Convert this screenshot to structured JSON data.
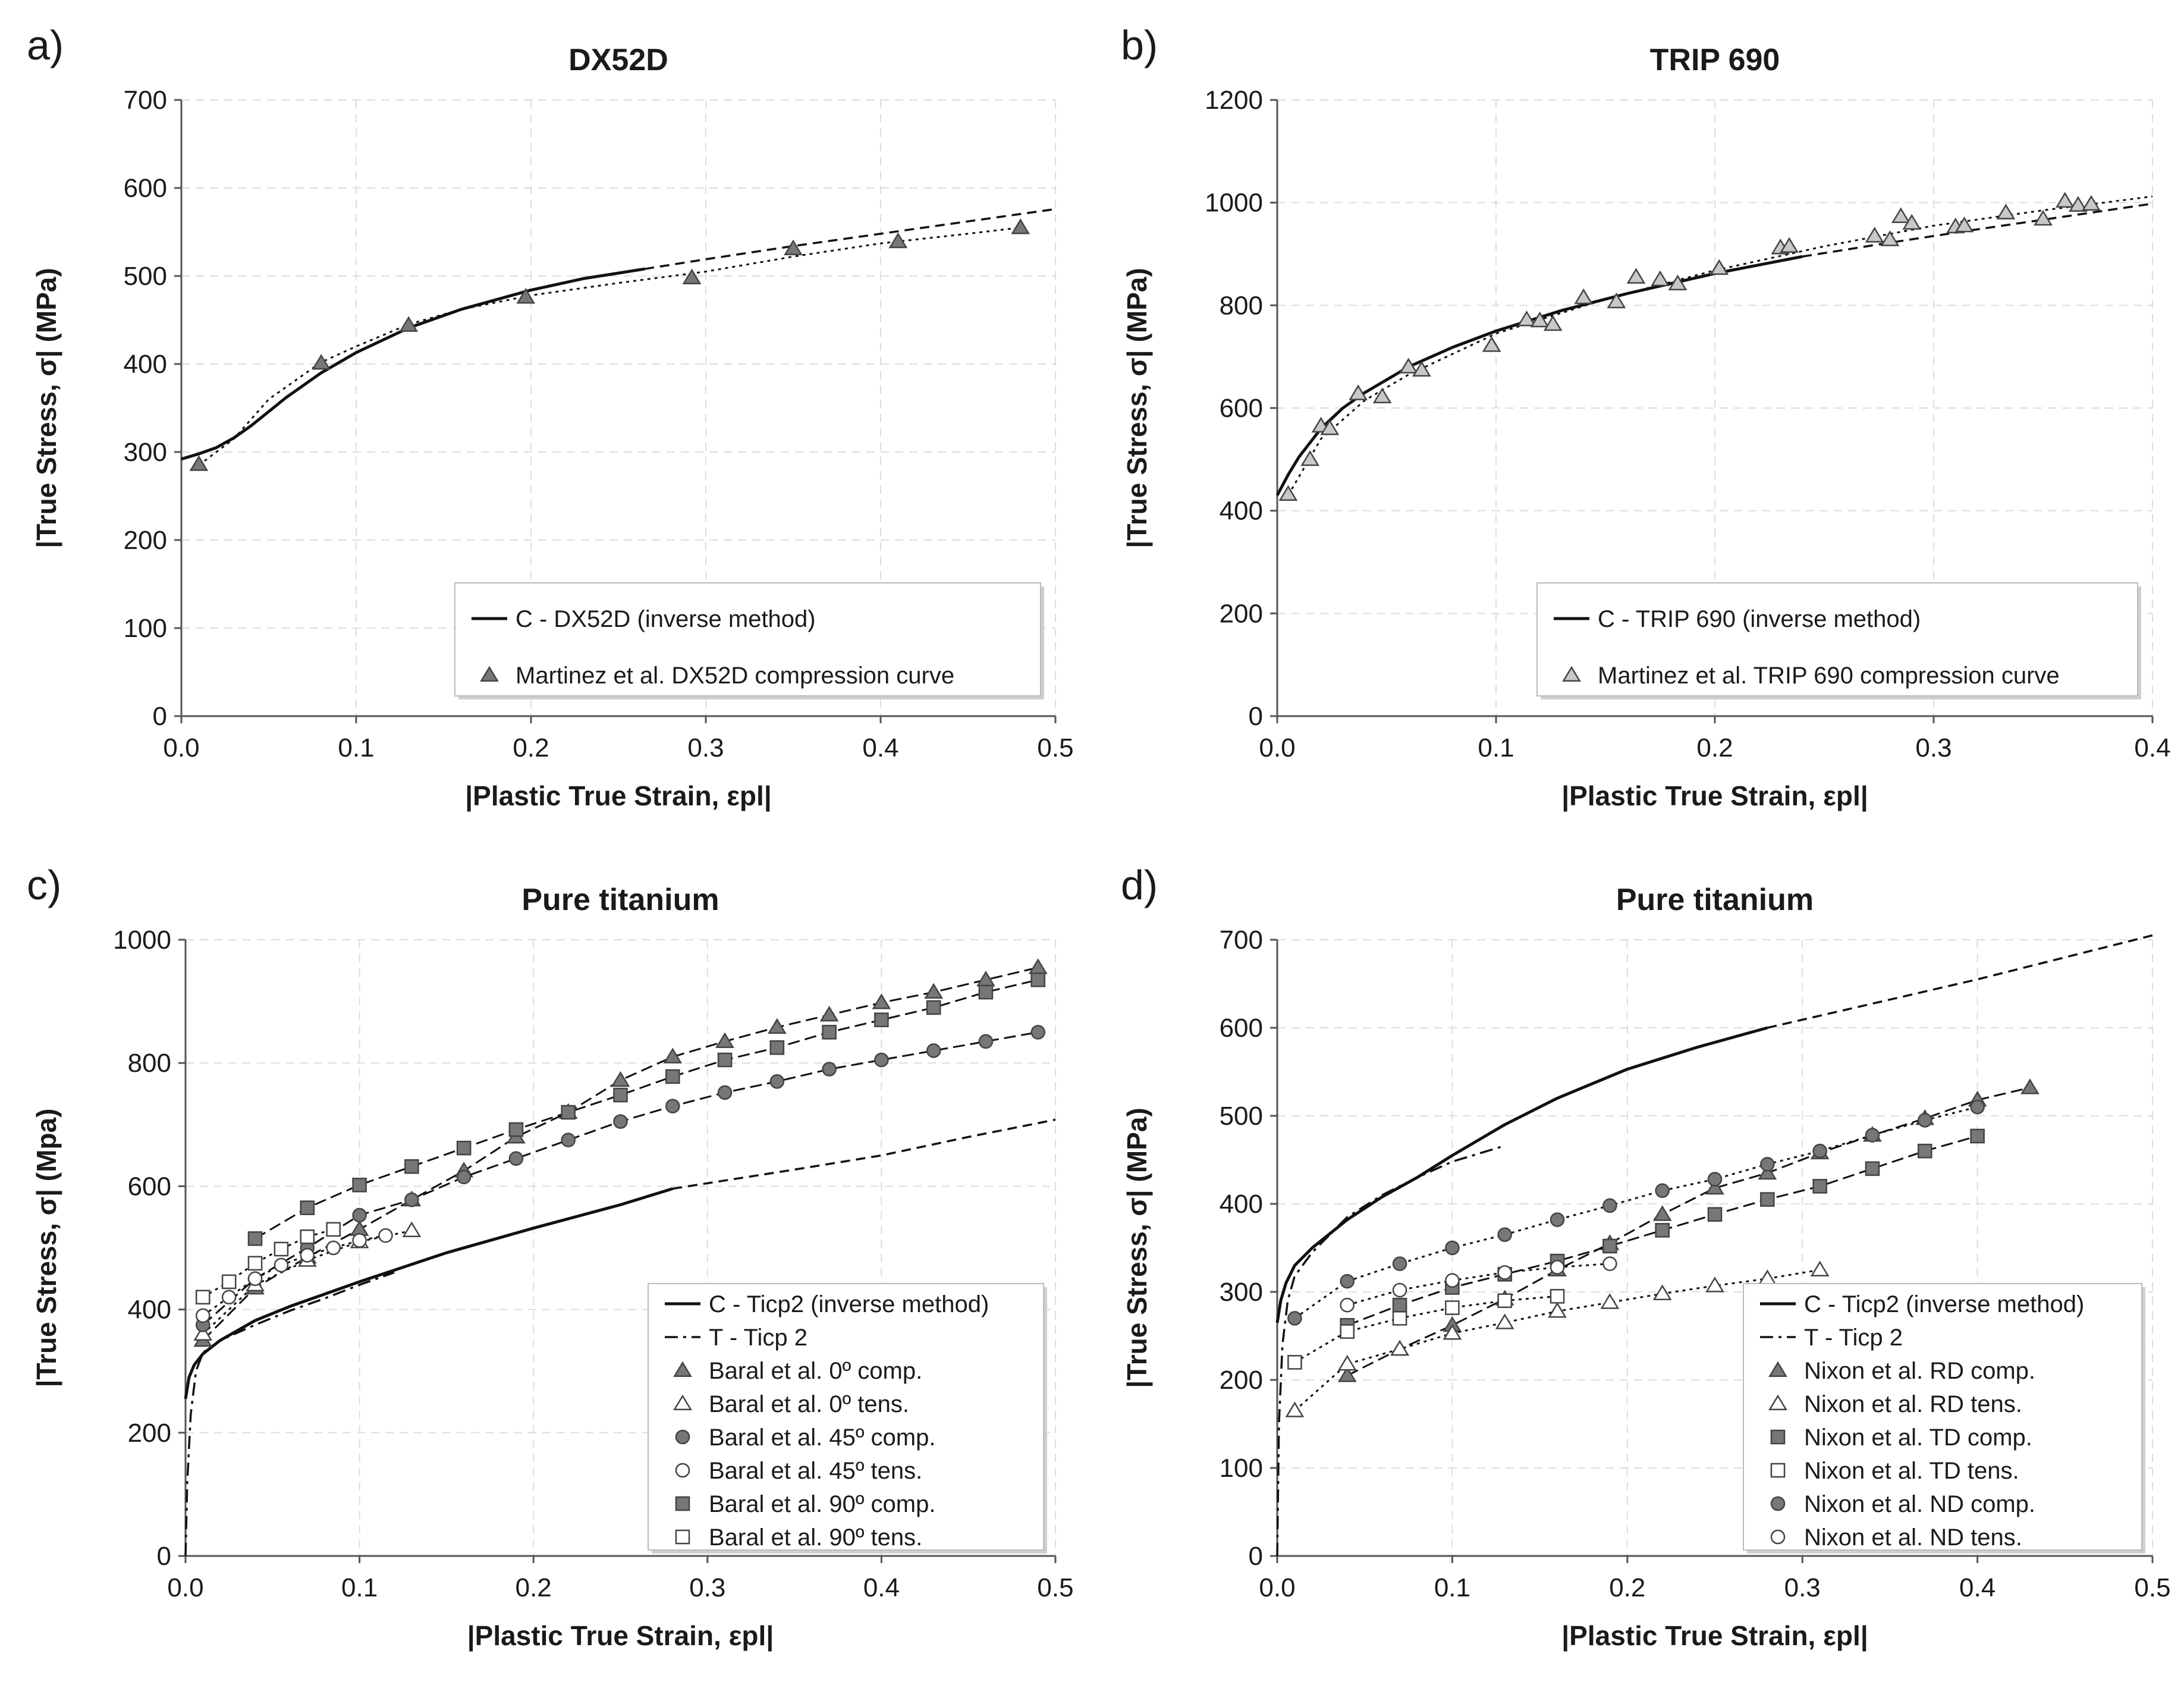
{
  "panels": [
    {
      "label": "a)",
      "chart_data": {
        "type": "line",
        "title": "DX52D",
        "xlabel": "|Plastic True Strain, εpl|",
        "ylabel": "|True Stress, σ| (MPa)",
        "xlim": [
          0,
          0.5
        ],
        "ylim": [
          0,
          700
        ],
        "xticks": [
          0,
          0.1,
          0.2,
          0.3,
          0.4,
          0.5
        ],
        "xtick_labels": [
          "0.0",
          "0.1",
          "0.2",
          "0.3",
          "0.4",
          "0.5"
        ],
        "yticks": [
          0,
          100,
          200,
          300,
          400,
          500,
          600,
          700
        ],
        "grid": true,
        "legend_position": "bottom-right",
        "series": [
          {
            "name": "C - DX52D (inverse method)",
            "style": "solid",
            "x": [
              0,
              0.01,
              0.02,
              0.03,
              0.04,
              0.05,
              0.06,
              0.08,
              0.1,
              0.13,
              0.16,
              0.2,
              0.23,
              0.265
            ],
            "y": [
              292,
              298,
              305,
              316,
              330,
              346,
              362,
              390,
              413,
              441,
              462,
              484,
              497,
              508
            ]
          },
          {
            "name": "",
            "style": "dashed",
            "legend": false,
            "x": [
              0.265,
              0.3,
              0.35,
              0.4,
              0.45,
              0.5
            ],
            "y": [
              508,
              519,
              534,
              548,
              562,
              576
            ]
          },
          {
            "name": "",
            "style": "dotted",
            "legend": false,
            "x": [
              0.01,
              0.03,
              0.05,
              0.08,
              0.1,
              0.13,
              0.16,
              0.2,
              0.25,
              0.3,
              0.35,
              0.4,
              0.45,
              0.48
            ],
            "y": [
              285,
              315,
              360,
              402,
              420,
              445,
              462,
              478,
              492,
              505,
              522,
              537,
              548,
              555
            ]
          },
          {
            "name": "Martinez et al. DX52D compression curve",
            "marker": "triangle",
            "fill": "#777777",
            "line": "none",
            "x": [
              0.01,
              0.08,
              0.13,
              0.197,
              0.292,
              0.35,
              0.41,
              0.48
            ],
            "y": [
              286,
              401,
              444,
              476,
              498,
              531,
              539,
              555
            ]
          }
        ]
      }
    },
    {
      "label": "b)",
      "chart_data": {
        "type": "line",
        "title": "TRIP 690",
        "xlabel": "|Plastic True Strain, εpl|",
        "ylabel": "|True Stress, σ| (MPa)",
        "xlim": [
          0,
          0.4
        ],
        "ylim": [
          0,
          1200
        ],
        "xticks": [
          0,
          0.1,
          0.2,
          0.3,
          0.4
        ],
        "xtick_labels": [
          "0.0",
          "0.1",
          "0.2",
          "0.3",
          "0.4"
        ],
        "yticks": [
          0,
          200,
          400,
          600,
          800,
          1000,
          1200
        ],
        "grid": true,
        "legend_position": "bottom-right",
        "series": [
          {
            "name": "C - TRIP 690 (inverse method)",
            "style": "solid",
            "x": [
              0,
              0.005,
              0.01,
              0.02,
              0.03,
              0.04,
              0.06,
              0.08,
              0.1,
              0.13,
              0.16,
              0.2,
              0.24
            ],
            "y": [
              430,
              470,
              505,
              560,
              600,
              630,
              680,
              718,
              750,
              790,
              823,
              862,
              895
            ]
          },
          {
            "name": "",
            "style": "dashed",
            "legend": false,
            "x": [
              0.24,
              0.28,
              0.32,
              0.36,
              0.4
            ],
            "y": [
              895,
              922,
              948,
              973,
              998
            ]
          },
          {
            "name": "",
            "style": "dotted",
            "legend": false,
            "x": [
              0.005,
              0.02,
              0.04,
              0.06,
              0.1,
              0.15,
              0.2,
              0.25,
              0.3,
              0.35,
              0.4
            ],
            "y": [
              430,
              540,
              615,
              665,
              745,
              812,
              868,
              915,
              955,
              985,
              1012
            ]
          },
          {
            "name": "Martinez et al. TRIP 690 compression curve",
            "marker": "triangle",
            "fill": "#c8c8c8",
            "line": "none",
            "x": [
              0.005,
              0.015,
              0.02,
              0.024,
              0.037,
              0.048,
              0.06,
              0.066,
              0.098,
              0.114,
              0.12,
              0.126,
              0.14,
              0.155,
              0.164,
              0.175,
              0.183,
              0.202,
              0.23,
              0.234,
              0.273,
              0.28,
              0.285,
              0.29,
              0.31,
              0.314,
              0.333,
              0.35,
              0.36,
              0.366,
              0.372
            ],
            "y": [
              432,
              500,
              565,
              560,
              628,
              622,
              680,
              674,
              722,
              772,
              770,
              763,
              815,
              807,
              855,
              850,
              842,
              872,
              912,
              915,
              935,
              928,
              973,
              960,
              953,
              955,
              980,
              968,
              1003,
              995,
              997
            ]
          }
        ]
      }
    },
    {
      "label": "c)",
      "chart_data": {
        "type": "line",
        "title": "Pure titanium",
        "xlabel": "|Plastic True Strain, εpl|",
        "ylabel": "|True Stress, σ| (Mpa)",
        "xlim": [
          0,
          0.5
        ],
        "ylim": [
          0,
          1000
        ],
        "xticks": [
          0,
          0.1,
          0.2,
          0.3,
          0.4,
          0.5
        ],
        "xtick_labels": [
          "0.0",
          "0.1",
          "0.2",
          "0.3",
          "0.4",
          "0.5"
        ],
        "yticks": [
          0,
          200,
          400,
          600,
          800,
          1000
        ],
        "grid": true,
        "legend_position": "bottom-right",
        "series": [
          {
            "name": "C - Ticp2 (inverse method)",
            "style": "solid",
            "x": [
              0,
              0.002,
              0.005,
              0.01,
              0.02,
              0.04,
              0.06,
              0.1,
              0.15,
              0.2,
              0.25,
              0.28
            ],
            "y": [
              255,
              290,
              310,
              328,
              350,
              382,
              405,
              445,
              492,
              532,
              570,
              596
            ]
          },
          {
            "name": "",
            "style": "dashed",
            "legend": false,
            "x": [
              0.28,
              0.35,
              0.4,
              0.45,
              0.5
            ],
            "y": [
              596,
              627,
              650,
              680,
              708
            ]
          },
          {
            "name": "T - Ticp 2",
            "style": "dashdot",
            "x": [
              0,
              0.001,
              0.003,
              0.006,
              0.01,
              0.02,
              0.04,
              0.06,
              0.08,
              0.1,
              0.12
            ],
            "y": [
              0,
              120,
              230,
              300,
              330,
              350,
              375,
              398,
              418,
              440,
              460
            ]
          },
          {
            "name": "Baral et al. 0º comp.",
            "marker": "triangle",
            "fill": "#777777",
            "style": "longdash",
            "x": [
              0.01,
              0.04,
              0.07,
              0.1,
              0.13,
              0.16,
              0.19,
              0.22,
              0.25,
              0.28,
              0.31,
              0.34,
              0.37,
              0.4,
              0.43,
              0.46,
              0.49
            ],
            "y": [
              350,
              435,
              485,
              530,
              578,
              625,
              680,
              720,
              772,
              810,
              835,
              858,
              878,
              898,
              915,
              935,
              955
            ]
          },
          {
            "name": "Baral et al. 0º tens.",
            "marker": "triangle",
            "fill": "#ffffff",
            "style": "dotted",
            "x": [
              0.01,
              0.04,
              0.07,
              0.1,
              0.13
            ],
            "y": [
              360,
              440,
              480,
              510,
              528
            ]
          },
          {
            "name": "Baral et al. 45º comp.",
            "marker": "circle",
            "fill": "#777777",
            "style": "longdash",
            "x": [
              0.01,
              0.04,
              0.07,
              0.1,
              0.13,
              0.16,
              0.19,
              0.22,
              0.25,
              0.28,
              0.31,
              0.34,
              0.37,
              0.4,
              0.43,
              0.46,
              0.49
            ],
            "y": [
              375,
              450,
              500,
              553,
              578,
              615,
              645,
              675,
              705,
              730,
              752,
              770,
              790,
              805,
              820,
              835,
              850
            ]
          },
          {
            "name": "Baral et al. 45º tens.",
            "marker": "circle",
            "fill": "#ffffff",
            "style": "dotted",
            "x": [
              0.01,
              0.025,
              0.04,
              0.055,
              0.07,
              0.085,
              0.1,
              0.115
            ],
            "y": [
              390,
              420,
              450,
              472,
              488,
              500,
              512,
              520
            ]
          },
          {
            "name": "Baral et al. 90º comp.",
            "marker": "square",
            "fill": "#777777",
            "style": "longdash",
            "x": [
              0.04,
              0.07,
              0.1,
              0.13,
              0.16,
              0.19,
              0.22,
              0.25,
              0.28,
              0.31,
              0.34,
              0.37,
              0.4,
              0.43,
              0.46,
              0.49
            ],
            "y": [
              515,
              565,
              602,
              632,
              662,
              692,
              720,
              748,
              778,
              805,
              825,
              850,
              870,
              890,
              915,
              935
            ]
          },
          {
            "name": "Baral et al. 90º tens.",
            "marker": "square",
            "fill": "#ffffff",
            "style": "dotted",
            "x": [
              0.01,
              0.025,
              0.04,
              0.055,
              0.07,
              0.085
            ],
            "y": [
              420,
              445,
              475,
              498,
              518,
              530
            ]
          }
        ]
      }
    },
    {
      "label": "d)",
      "chart_data": {
        "type": "line",
        "title": "Pure titanium",
        "xlabel": "|Plastic True Strain, εpl|",
        "ylabel": "|True Stress, σ| (MPa)",
        "xlim": [
          0,
          0.5
        ],
        "ylim": [
          0,
          700
        ],
        "xticks": [
          0,
          0.1,
          0.2,
          0.3,
          0.4,
          0.5
        ],
        "xtick_labels": [
          "0.0",
          "0.1",
          "0.2",
          "0.3",
          "0.4",
          "0.5"
        ],
        "yticks": [
          0,
          100,
          200,
          300,
          400,
          500,
          600,
          700
        ],
        "grid": true,
        "legend_position": "bottom-right",
        "series": [
          {
            "name": "C - Ticp2 (inverse method)",
            "style": "solid",
            "x": [
              0,
              0.002,
              0.005,
              0.01,
              0.02,
              0.04,
              0.06,
              0.08,
              0.1,
              0.13,
              0.16,
              0.2,
              0.24,
              0.28
            ],
            "y": [
              265,
              290,
              310,
              330,
              350,
              382,
              408,
              430,
              455,
              490,
              520,
              553,
              578,
              600
            ]
          },
          {
            "name": "",
            "style": "dashed",
            "legend": false,
            "x": [
              0.28,
              0.35,
              0.4,
              0.45,
              0.5
            ],
            "y": [
              600,
              632,
              655,
              680,
              705
            ]
          },
          {
            "name": "T - Ticp 2",
            "style": "dashdot",
            "x": [
              0,
              0.001,
              0.003,
              0.006,
              0.01,
              0.02,
              0.04,
              0.06,
              0.08,
              0.1,
              0.13
            ],
            "y": [
              0,
              150,
              240,
              290,
              318,
              345,
              385,
              410,
              430,
              448,
              466
            ]
          },
          {
            "name": "Nixon et al. RD comp.",
            "marker": "triangle",
            "fill": "#777777",
            "style": "longdash",
            "x": [
              0.04,
              0.07,
              0.1,
              0.13,
              0.16,
              0.19,
              0.22,
              0.25,
              0.28,
              0.31,
              0.34,
              0.37,
              0.4,
              0.43
            ],
            "y": [
              205,
              235,
              262,
              292,
              325,
              355,
              388,
              418,
              435,
              458,
              478,
              497,
              518,
              532
            ]
          },
          {
            "name": "Nixon et al. RD tens.",
            "marker": "triangle",
            "fill": "#ffffff",
            "style": "dotted",
            "x": [
              0.01,
              0.04,
              0.07,
              0.1,
              0.13,
              0.16,
              0.19,
              0.22,
              0.25,
              0.28,
              0.31
            ],
            "y": [
              165,
              218,
              235,
              253,
              265,
              278,
              288,
              298,
              307,
              315,
              325
            ]
          },
          {
            "name": "Nixon et al. TD comp.",
            "marker": "square",
            "fill": "#777777",
            "style": "longdash",
            "x": [
              0.04,
              0.07,
              0.1,
              0.13,
              0.16,
              0.19,
              0.22,
              0.25,
              0.28,
              0.31,
              0.34,
              0.37,
              0.4
            ],
            "y": [
              262,
              285,
              305,
              320,
              335,
              352,
              370,
              388,
              405,
              420,
              440,
              460,
              477
            ]
          },
          {
            "name": "Nixon et al. TD tens.",
            "marker": "square",
            "fill": "#ffffff",
            "style": "dotted",
            "x": [
              0.01,
              0.04,
              0.07,
              0.1,
              0.13,
              0.16
            ],
            "y": [
              220,
              255,
              270,
              282,
              290,
              295
            ]
          },
          {
            "name": "Nixon et al. ND comp.",
            "marker": "circle",
            "fill": "#777777",
            "style": "dotted",
            "x": [
              0.01,
              0.04,
              0.07,
              0.1,
              0.13,
              0.16,
              0.19,
              0.22,
              0.25,
              0.28,
              0.31,
              0.34,
              0.37,
              0.4
            ],
            "y": [
              270,
              312,
              332,
              350,
              365,
              382,
              398,
              415,
              428,
              445,
              460,
              478,
              495,
              510
            ]
          },
          {
            "name": "Nixon et al. ND tens.",
            "marker": "circle",
            "fill": "#ffffff",
            "style": "dotted",
            "x": [
              0.04,
              0.07,
              0.1,
              0.13,
              0.16,
              0.19
            ],
            "y": [
              285,
              302,
              313,
              322,
              328,
              332
            ]
          }
        ]
      }
    }
  ]
}
